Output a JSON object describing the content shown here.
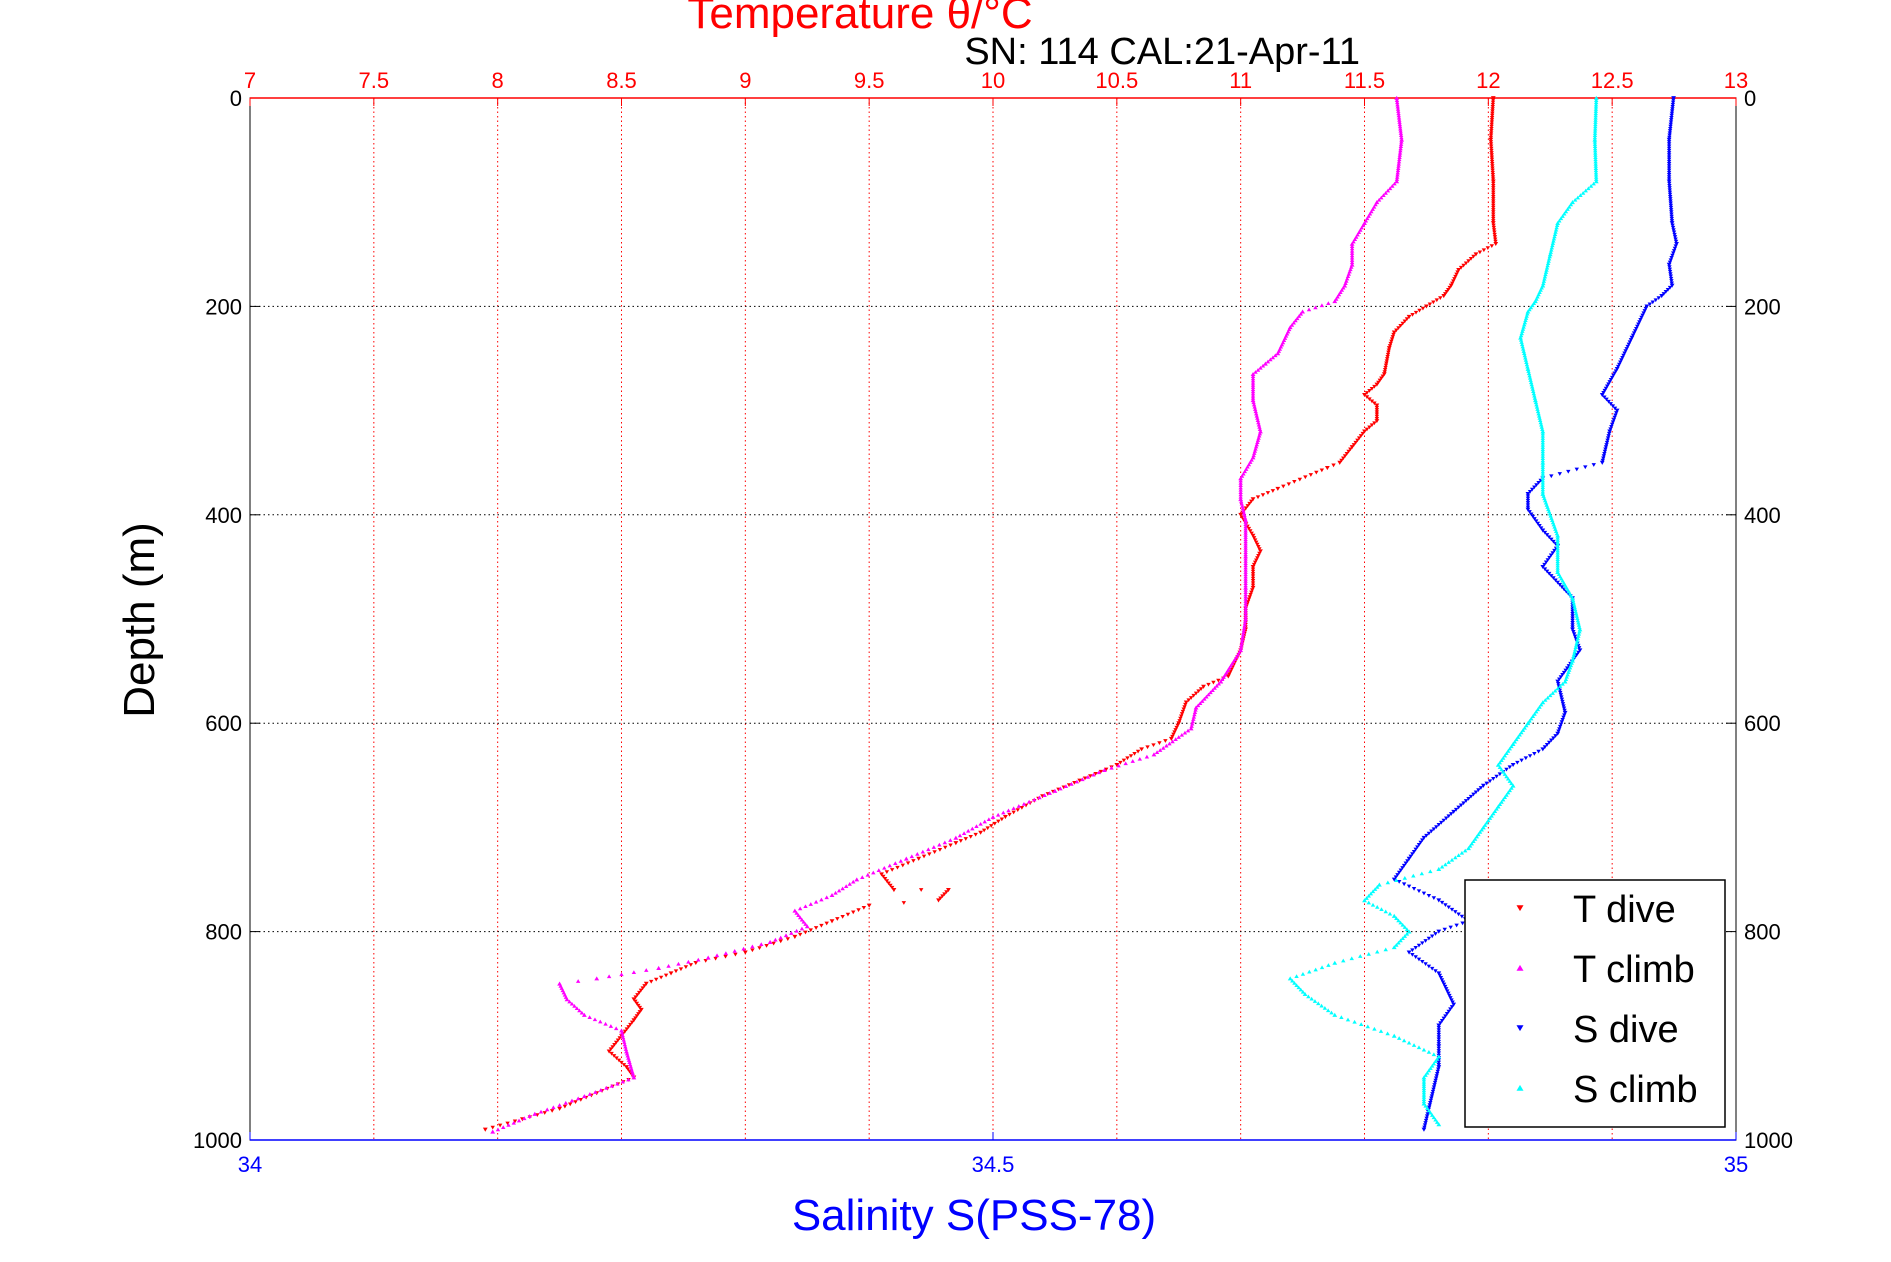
{
  "chart_data": {
    "type": "scatter",
    "title": "Temperature θ/°C",
    "subtitle": "SN: 114  CAL:21-Apr-11",
    "ylabel": "Depth (m)",
    "xlabel": "Salinity S(PSS-78)",
    "y_reversed": true,
    "ylim": [
      0,
      1000
    ],
    "y_ticks": [
      0,
      200,
      400,
      600,
      800,
      1000
    ],
    "temperature_axis": {
      "position": "top",
      "lim": [
        7,
        13
      ],
      "ticks": [
        7,
        7.5,
        8,
        8.5,
        9,
        9.5,
        10,
        10.5,
        11,
        11.5,
        12,
        12.5,
        13
      ],
      "tick_labels": [
        "7",
        "7.5",
        "8",
        "8.5",
        "9",
        "9.5",
        "10",
        "10.5",
        "11",
        "11.5",
        "12",
        "12.5",
        "13"
      ],
      "color": "#ff0000",
      "grid": true
    },
    "salinity_axis": {
      "position": "bottom",
      "lim": [
        34,
        35
      ],
      "ticks": [
        34,
        34.5,
        35
      ],
      "tick_labels": [
        "34",
        "34.5",
        "35"
      ],
      "color": "#0000ff"
    },
    "legend": {
      "placement": "bottom-right",
      "entries": [
        "T dive",
        "T climb",
        "S dive",
        "S climb"
      ]
    },
    "series": [
      {
        "name": "T dive",
        "axis": "temperature",
        "color": "#ff0000",
        "marker": "triangle-down",
        "points": [
          [
            12.02,
            0
          ],
          [
            12.01,
            40
          ],
          [
            12.02,
            80
          ],
          [
            12.02,
            120
          ],
          [
            12.03,
            140
          ],
          [
            11.95,
            150
          ],
          [
            11.88,
            165
          ],
          [
            11.85,
            180
          ],
          [
            11.82,
            190
          ],
          [
            11.75,
            200
          ],
          [
            11.68,
            210
          ],
          [
            11.62,
            225
          ],
          [
            11.6,
            240
          ],
          [
            11.58,
            265
          ],
          [
            11.55,
            275
          ],
          [
            11.5,
            285
          ],
          [
            11.55,
            295
          ],
          [
            11.55,
            310
          ],
          [
            11.5,
            320
          ],
          [
            11.45,
            335
          ],
          [
            11.4,
            350
          ],
          [
            11.35,
            355
          ],
          [
            11.15,
            375
          ],
          [
            11.05,
            385
          ],
          [
            11.0,
            400
          ],
          [
            11.05,
            420
          ],
          [
            11.08,
            435
          ],
          [
            11.05,
            450
          ],
          [
            11.05,
            470
          ],
          [
            11.02,
            490
          ],
          [
            11.02,
            510
          ],
          [
            11.0,
            530
          ],
          [
            10.95,
            555
          ],
          [
            10.85,
            565
          ],
          [
            10.78,
            580
          ],
          [
            10.75,
            600
          ],
          [
            10.72,
            615
          ],
          [
            10.6,
            625
          ],
          [
            10.5,
            640
          ],
          [
            10.35,
            655
          ],
          [
            10.2,
            670
          ],
          [
            10.05,
            690
          ],
          [
            9.95,
            705
          ],
          [
            9.85,
            715
          ],
          [
            9.7,
            730
          ],
          [
            9.55,
            745
          ],
          [
            9.6,
            760
          ],
          [
            9.82,
            760
          ],
          [
            9.78,
            770
          ],
          [
            9.5,
            775
          ],
          [
            9.35,
            790
          ],
          [
            9.2,
            805
          ],
          [
            9.0,
            820
          ],
          [
            8.8,
            830
          ],
          [
            8.7,
            840
          ],
          [
            8.6,
            850
          ],
          [
            8.55,
            865
          ],
          [
            8.58,
            875
          ],
          [
            8.55,
            885
          ],
          [
            8.5,
            900
          ],
          [
            8.45,
            915
          ],
          [
            8.52,
            930
          ],
          [
            8.55,
            940
          ],
          [
            8.4,
            955
          ],
          [
            8.25,
            970
          ],
          [
            8.1,
            980
          ],
          [
            7.95,
            990
          ]
        ]
      },
      {
        "name": "T climb",
        "axis": "temperature",
        "color": "#ff00ff",
        "marker": "triangle-up",
        "points": [
          [
            11.63,
            0
          ],
          [
            11.65,
            40
          ],
          [
            11.63,
            80
          ],
          [
            11.55,
            100
          ],
          [
            11.5,
            120
          ],
          [
            11.45,
            140
          ],
          [
            11.45,
            160
          ],
          [
            11.42,
            180
          ],
          [
            11.38,
            195
          ],
          [
            11.25,
            205
          ],
          [
            11.2,
            220
          ],
          [
            11.15,
            245
          ],
          [
            11.1,
            255
          ],
          [
            11.05,
            265
          ],
          [
            11.05,
            290
          ],
          [
            11.08,
            320
          ],
          [
            11.05,
            345
          ],
          [
            11.0,
            365
          ],
          [
            11.0,
            385
          ],
          [
            11.02,
            405
          ],
          [
            11.02,
            440
          ],
          [
            11.02,
            470
          ],
          [
            11.02,
            500
          ],
          [
            11.0,
            530
          ],
          [
            10.92,
            560
          ],
          [
            10.82,
            585
          ],
          [
            10.8,
            605
          ],
          [
            10.65,
            630
          ],
          [
            10.45,
            645
          ],
          [
            10.25,
            665
          ],
          [
            10.0,
            690
          ],
          [
            9.85,
            710
          ],
          [
            9.65,
            730
          ],
          [
            9.45,
            750
          ],
          [
            9.35,
            765
          ],
          [
            9.2,
            780
          ],
          [
            9.25,
            795
          ],
          [
            9.1,
            810
          ],
          [
            8.85,
            825
          ],
          [
            8.65,
            835
          ],
          [
            8.4,
            845
          ],
          [
            8.25,
            850
          ],
          [
            8.28,
            865
          ],
          [
            8.35,
            880
          ],
          [
            8.5,
            895
          ],
          [
            8.52,
            915
          ],
          [
            8.55,
            940
          ],
          [
            8.35,
            958
          ],
          [
            8.15,
            975
          ],
          [
            7.98,
            992
          ]
        ]
      },
      {
        "name": "S dive",
        "axis": "salinity",
        "color": "#0000ff",
        "marker": "triangle-down",
        "points": [
          [
            34.958,
            0
          ],
          [
            34.955,
            40
          ],
          [
            34.955,
            80
          ],
          [
            34.957,
            120
          ],
          [
            34.96,
            140
          ],
          [
            34.955,
            160
          ],
          [
            34.957,
            180
          ],
          [
            34.95,
            190
          ],
          [
            34.94,
            200
          ],
          [
            34.93,
            230
          ],
          [
            34.92,
            260
          ],
          [
            34.91,
            285
          ],
          [
            34.92,
            300
          ],
          [
            34.915,
            320
          ],
          [
            34.91,
            350
          ],
          [
            34.87,
            365
          ],
          [
            34.86,
            380
          ],
          [
            34.86,
            395
          ],
          [
            34.87,
            415
          ],
          [
            34.88,
            430
          ],
          [
            34.87,
            450
          ],
          [
            34.89,
            480
          ],
          [
            34.89,
            510
          ],
          [
            34.895,
            530
          ],
          [
            34.88,
            560
          ],
          [
            34.885,
            590
          ],
          [
            34.88,
            610
          ],
          [
            34.87,
            625
          ],
          [
            34.85,
            640
          ],
          [
            34.83,
            660
          ],
          [
            34.81,
            685
          ],
          [
            34.79,
            710
          ],
          [
            34.78,
            730
          ],
          [
            34.77,
            750
          ],
          [
            34.8,
            770
          ],
          [
            34.82,
            790
          ],
          [
            34.8,
            800
          ],
          [
            34.78,
            820
          ],
          [
            34.8,
            840
          ],
          [
            34.81,
            870
          ],
          [
            34.8,
            890
          ],
          [
            34.8,
            910
          ],
          [
            34.8,
            930
          ],
          [
            34.79,
            990
          ]
        ]
      },
      {
        "name": "S climb",
        "axis": "salinity",
        "color": "#00ffff",
        "marker": "triangle-up",
        "points": [
          [
            34.906,
            0
          ],
          [
            34.905,
            40
          ],
          [
            34.906,
            80
          ],
          [
            34.89,
            100
          ],
          [
            34.88,
            120
          ],
          [
            34.875,
            150
          ],
          [
            34.87,
            180
          ],
          [
            34.865,
            195
          ],
          [
            34.86,
            205
          ],
          [
            34.855,
            230
          ],
          [
            34.86,
            260
          ],
          [
            34.865,
            290
          ],
          [
            34.87,
            320
          ],
          [
            34.87,
            350
          ],
          [
            34.87,
            380
          ],
          [
            34.88,
            420
          ],
          [
            34.88,
            455
          ],
          [
            34.89,
            480
          ],
          [
            34.895,
            510
          ],
          [
            34.89,
            540
          ],
          [
            34.885,
            560
          ],
          [
            34.87,
            580
          ],
          [
            34.86,
            600
          ],
          [
            34.85,
            620
          ],
          [
            34.84,
            640
          ],
          [
            34.85,
            660
          ],
          [
            34.84,
            680
          ],
          [
            34.83,
            700
          ],
          [
            34.82,
            720
          ],
          [
            34.8,
            740
          ],
          [
            34.76,
            755
          ],
          [
            34.75,
            770
          ],
          [
            34.77,
            785
          ],
          [
            34.78,
            800
          ],
          [
            34.77,
            815
          ],
          [
            34.73,
            830
          ],
          [
            34.7,
            845
          ],
          [
            34.71,
            860
          ],
          [
            34.73,
            880
          ],
          [
            34.77,
            900
          ],
          [
            34.8,
            920
          ],
          [
            34.79,
            940
          ],
          [
            34.79,
            965
          ],
          [
            34.8,
            985
          ]
        ]
      }
    ]
  }
}
